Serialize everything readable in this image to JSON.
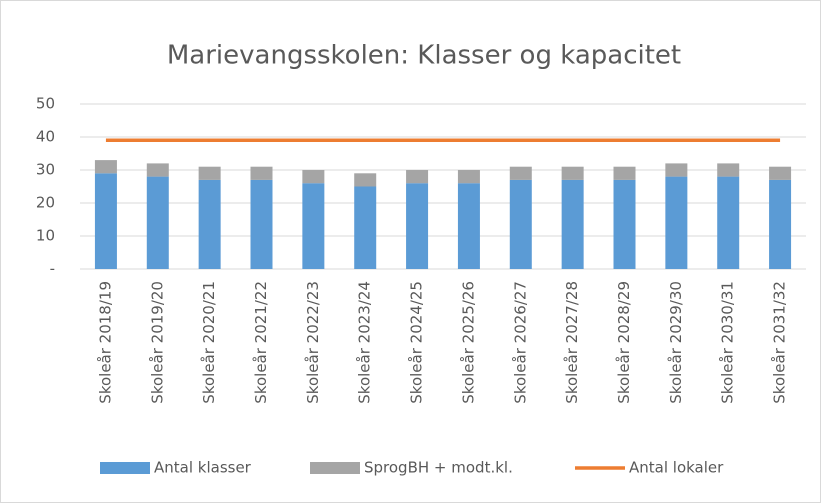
{
  "chart_data": {
    "type": "bar",
    "stacked": true,
    "title": "Marievangsskolen: Klasser og kapacitet",
    "categories": [
      "Skoleår 2018/19",
      "Skoleår 2019/20",
      "Skoleår 2020/21",
      "Skoleår 2021/22",
      "Skoleår 2022/23",
      "Skoleår 2023/24",
      "Skoleår 2024/25",
      "Skoleår 2025/26",
      "Skoleår 2026/27",
      "Skoleår 2027/28",
      "Skoleår 2028/29",
      "Skoleår 2029/30",
      "Skoleår 2030/31",
      "Skoleår 2031/32"
    ],
    "series": [
      {
        "name": "Antal klasser",
        "type": "bar",
        "color": "#5b9bd5",
        "values": [
          29,
          28,
          27,
          27,
          26,
          25,
          26,
          26,
          27,
          27,
          27,
          28,
          28,
          27
        ]
      },
      {
        "name": "SprogBH + modt.kl.",
        "type": "bar",
        "color": "#a5a5a5",
        "values": [
          4,
          4,
          4,
          4,
          4,
          4,
          4,
          4,
          4,
          4,
          4,
          4,
          4,
          4
        ]
      },
      {
        "name": "Antal lokaler",
        "type": "line",
        "color": "#ed7d31",
        "values": [
          39,
          39,
          39,
          39,
          39,
          39,
          39,
          39,
          39,
          39,
          39,
          39,
          39,
          39
        ]
      }
    ],
    "ylim": [
      0,
      50
    ],
    "yticks": [
      {
        "value": 0,
        "label": "-"
      },
      10,
      20,
      30,
      40,
      50
    ],
    "grid": true,
    "legend": "bottom"
  }
}
